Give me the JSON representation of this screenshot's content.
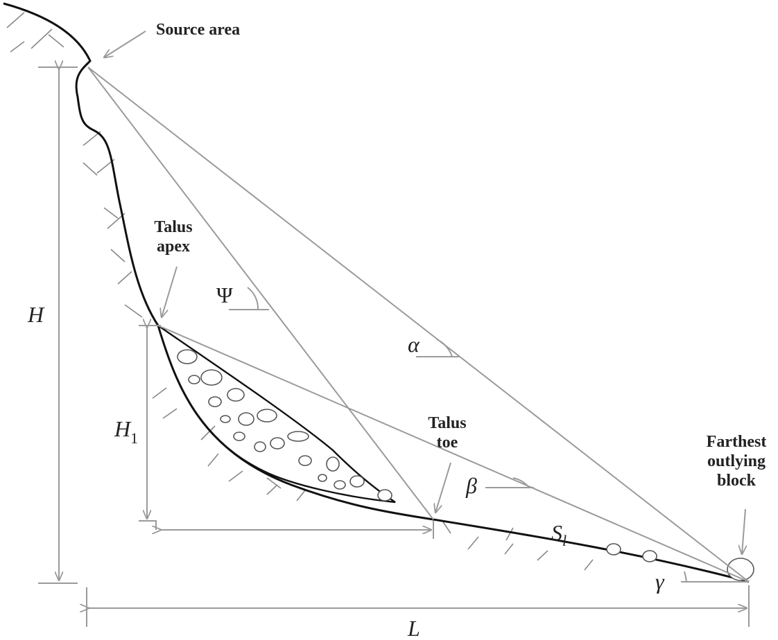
{
  "labels": {
    "source_area": "Source area",
    "talus_apex": [
      "Talus",
      "apex"
    ],
    "talus_toe": [
      "Talus",
      "toe"
    ],
    "farthest_block": [
      "Farthest",
      "outlying",
      "block"
    ]
  },
  "symbols": {
    "H": "H",
    "H1": {
      "base": "H",
      "sub": "1"
    },
    "L": "L",
    "psi": "Ψ",
    "alpha": "α",
    "beta": "β",
    "gamma": "γ",
    "Sl": {
      "base": "S",
      "sub": "l"
    }
  }
}
